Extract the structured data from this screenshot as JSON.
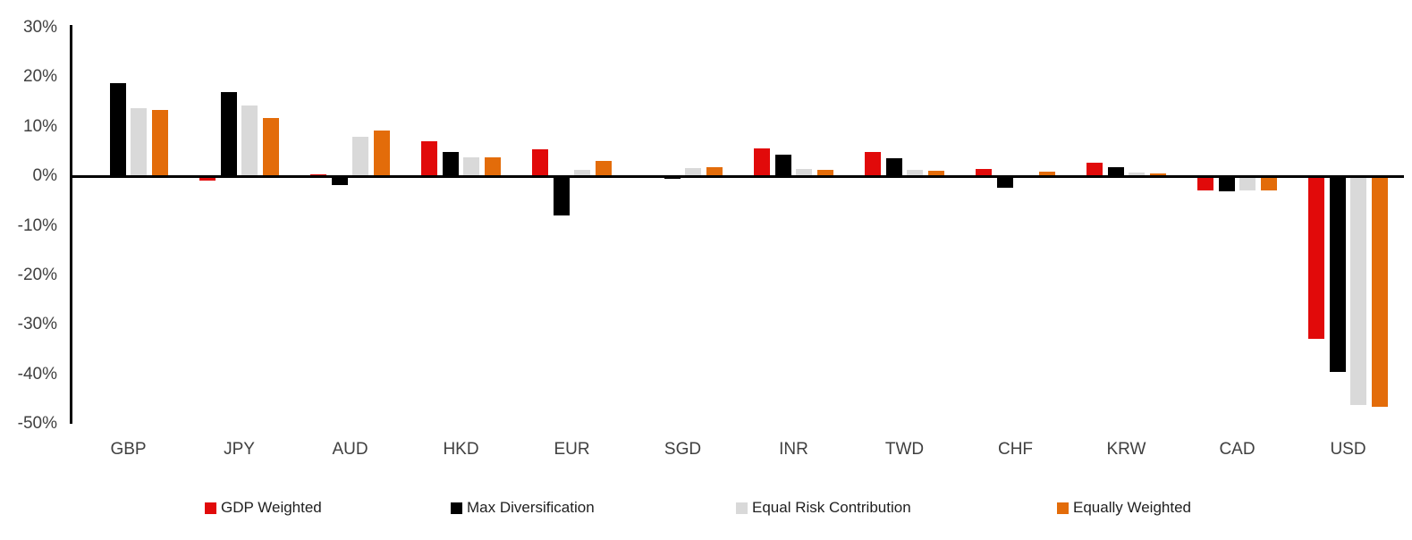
{
  "chart_data": {
    "type": "bar",
    "title": "",
    "xlabel": "",
    "ylabel": "",
    "categories": [
      "GBP",
      "JPY",
      "AUD",
      "HKD",
      "EUR",
      "SGD",
      "INR",
      "TWD",
      "CHF",
      "KRW",
      "CAD",
      "USD"
    ],
    "series": [
      {
        "name": "GDP Weighted",
        "color": "#e10a0a",
        "values": [
          0.2,
          -0.8,
          0.4,
          7.1,
          5.4,
          -0.1,
          5.7,
          4.9,
          1.5,
          2.7,
          -2.9,
          -32.8
        ]
      },
      {
        "name": "Max Diversification",
        "color": "#000000",
        "values": [
          18.8,
          17.0,
          -1.8,
          4.9,
          -8.0,
          -0.5,
          4.3,
          3.7,
          -2.4,
          1.9,
          -3.0,
          -39.6
        ]
      },
      {
        "name": "Equal Risk Contribution",
        "color": "#d9d9d9",
        "values": [
          13.8,
          14.2,
          8.0,
          3.9,
          1.3,
          1.6,
          1.5,
          1.3,
          0.1,
          0.7,
          -2.8,
          -46.3
        ]
      },
      {
        "name": "Equally Weighted",
        "color": "#e36c0a",
        "values": [
          13.3,
          11.8,
          9.3,
          3.9,
          3.1,
          1.9,
          1.2,
          1.1,
          0.9,
          0.5,
          -2.9,
          -46.6
        ]
      }
    ],
    "ylim": [
      -50,
      30
    ],
    "ytick_step": 10,
    "ytick_labels": [
      "30%",
      "20%",
      "10%",
      "0%",
      "-10%",
      "-20%",
      "-30%",
      "-40%",
      "-50%"
    ],
    "grid": false,
    "legend_position": "bottom"
  }
}
